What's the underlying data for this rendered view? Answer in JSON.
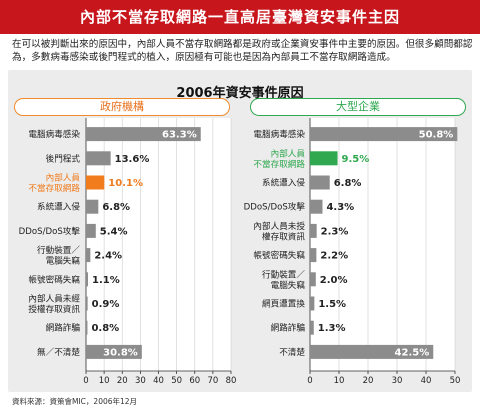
{
  "banner": {
    "title": "內部不當存取網路一直高居臺灣資安事件主因"
  },
  "intro": {
    "text": "在可以被判斷出來的原因中，內部人員不當存取網路都是政府或企業資安事件中主要的原因。但很多顧問都認為，多數病毒感染或後門程式的植入，原因極有可能也是因為內部員工不當存取網路造成。"
  },
  "chart_title": "2006年資安事件原因",
  "source": "資料來源：資策會MIC，2006年12月",
  "colors": {
    "bar": "#8c8c8c",
    "highlight_gov": "#f07c1e",
    "highlight_ent": "#2fa84f",
    "banner": "#c8161d"
  },
  "chart_data": [
    {
      "type": "bar",
      "title": "政府機構",
      "orientation": "horizontal",
      "categories": [
        "電腦病毒感染",
        "後門程式",
        "內部人員\n不當存取網路",
        "系統遭入侵",
        "DDoS/DoS攻擊",
        "行動裝置／\n電腦失竊",
        "帳號密碼失竊",
        "內部人員未經\n授權存取資訊",
        "網路詐騙",
        "無／不清楚"
      ],
      "values": [
        63.3,
        13.6,
        10.1,
        6.8,
        5.4,
        2.4,
        1.1,
        0.9,
        0.8,
        30.8
      ],
      "value_labels": [
        "63.3%",
        "13.6%",
        "10.1%",
        "6.8%",
        "5.4%",
        "2.4%",
        "1.1%",
        "0.9%",
        "0.8%",
        "30.8%"
      ],
      "highlight_index": 2,
      "xlim": [
        0,
        80
      ],
      "xticks": [
        0,
        10,
        20,
        30,
        40,
        50,
        60,
        70,
        80
      ],
      "grid": true
    },
    {
      "type": "bar",
      "title": "大型企業",
      "orientation": "horizontal",
      "categories": [
        "電腦病毒感染",
        "內部人員\n不當存取網路",
        "系統遭入侵",
        "DDoS/DoS攻擊",
        "內部人員未授\n權存取資訊",
        "帳號密碼失竊",
        "行動裝置／\n電腦失竊",
        "網頁遭置換",
        "網路詐騙",
        "不清楚"
      ],
      "values": [
        50.8,
        9.5,
        6.8,
        4.3,
        2.3,
        2.2,
        2.0,
        1.5,
        1.3,
        42.5
      ],
      "value_labels": [
        "50.8%",
        "9.5%",
        "6.8%",
        "4.3%",
        "2.3%",
        "2.2%",
        "2.0%",
        "1.5%",
        "1.3%",
        "42.5%"
      ],
      "highlight_index": 1,
      "xlim": [
        0,
        50
      ],
      "xticks": [
        0,
        10,
        20,
        30,
        40,
        50
      ],
      "grid": true
    }
  ]
}
